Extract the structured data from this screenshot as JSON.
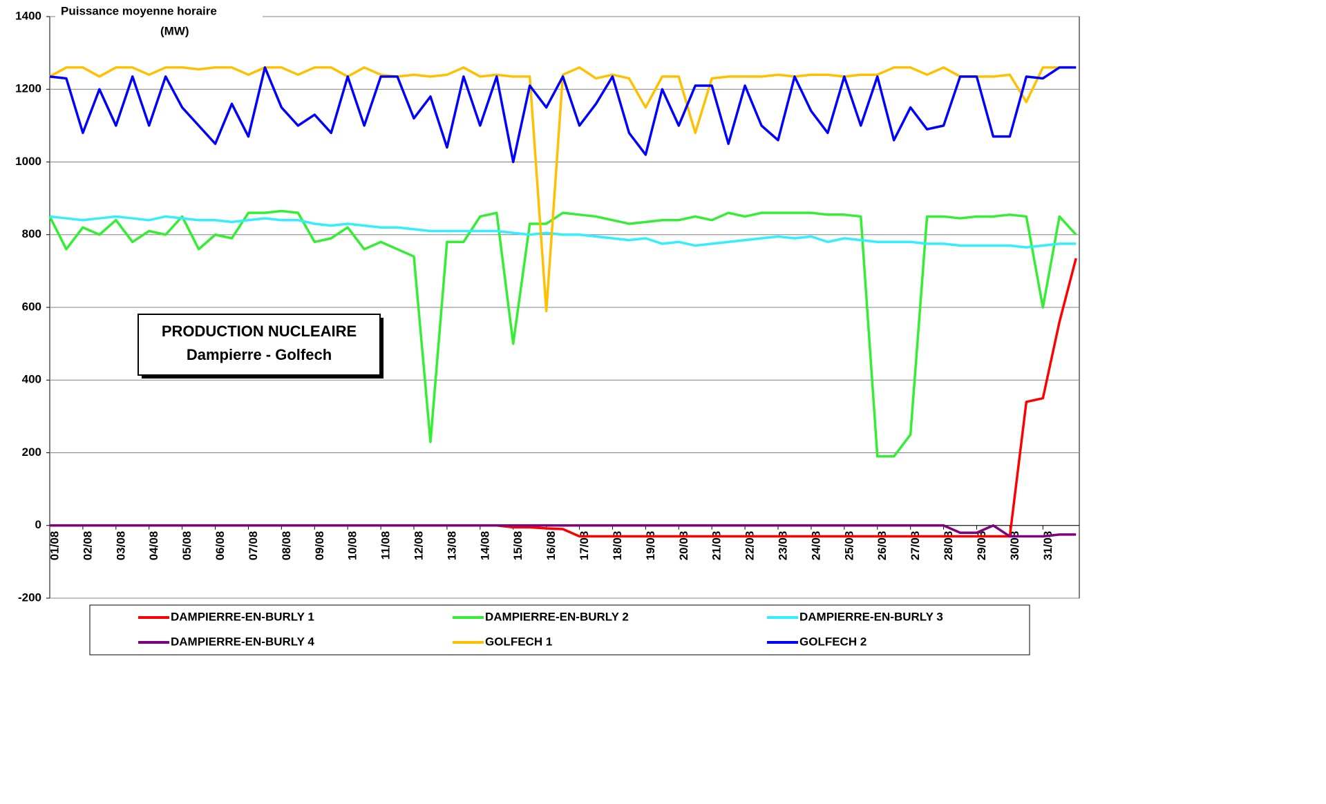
{
  "chart_data": {
    "type": "line",
    "ylabel": [
      "Puissance moyenne horaire",
      "(MW)"
    ],
    "annotation": [
      "PRODUCTION NUCLEAIRE",
      "Dampierre - Golfech"
    ],
    "x": [
      0,
      0.5,
      1,
      1.5,
      2,
      2.5,
      3,
      3.5,
      4,
      4.5,
      5,
      5.5,
      6,
      6.5,
      7,
      7.5,
      8,
      8.5,
      9,
      9.5,
      10,
      10.5,
      11,
      11.5,
      12,
      12.5,
      13,
      13.5,
      14,
      14.5,
      15,
      15.5,
      16,
      16.5,
      17,
      17.5,
      18,
      18.5,
      19,
      19.5,
      20,
      20.5,
      21,
      21.5,
      22,
      22.5,
      23,
      23.5,
      24,
      24.5,
      25,
      25.5,
      26,
      26.5,
      27,
      27.5,
      28,
      28.5,
      29,
      29.5,
      30,
      30.5,
      31
    ],
    "xlim": [
      0,
      31.1
    ],
    "xticks": [
      {
        "value": 0,
        "label": "01/08"
      },
      {
        "value": 1,
        "label": "02/08"
      },
      {
        "value": 2,
        "label": "03/08"
      },
      {
        "value": 3,
        "label": "04/08"
      },
      {
        "value": 4,
        "label": "05/08"
      },
      {
        "value": 5,
        "label": "06/08"
      },
      {
        "value": 6,
        "label": "07/08"
      },
      {
        "value": 7,
        "label": "08/08"
      },
      {
        "value": 8,
        "label": "09/08"
      },
      {
        "value": 9,
        "label": "10/08"
      },
      {
        "value": 10,
        "label": "11/08"
      },
      {
        "value": 11,
        "label": "12/08"
      },
      {
        "value": 12,
        "label": "13/08"
      },
      {
        "value": 13,
        "label": "14/08"
      },
      {
        "value": 14,
        "label": "15/08"
      },
      {
        "value": 15,
        "label": "16/08"
      },
      {
        "value": 16,
        "label": "17/08"
      },
      {
        "value": 17,
        "label": "18/08"
      },
      {
        "value": 18,
        "label": "19/08"
      },
      {
        "value": 19,
        "label": "20/08"
      },
      {
        "value": 20,
        "label": "21/08"
      },
      {
        "value": 21,
        "label": "22/08"
      },
      {
        "value": 22,
        "label": "23/08"
      },
      {
        "value": 23,
        "label": "24/08"
      },
      {
        "value": 24,
        "label": "25/08"
      },
      {
        "value": 25,
        "label": "26/08"
      },
      {
        "value": 26,
        "label": "27/08"
      },
      {
        "value": 27,
        "label": "28/08"
      },
      {
        "value": 28,
        "label": "29/08"
      },
      {
        "value": 29,
        "label": "30/08"
      },
      {
        "value": 30,
        "label": "31/08"
      }
    ],
    "ylim": [
      -200,
      1400
    ],
    "yticks": [
      -200,
      0,
      200,
      400,
      600,
      800,
      1000,
      1200,
      1400
    ],
    "grid": true,
    "series": [
      {
        "name": "DAMPIERRE-EN-BURLY 1",
        "color": "#ff0000",
        "values": [
          0,
          0,
          0,
          0,
          0,
          0,
          0,
          0,
          0,
          0,
          0,
          0,
          0,
          0,
          0,
          0,
          0,
          0,
          0,
          0,
          0,
          0,
          0,
          0,
          0,
          0,
          0,
          0,
          -5,
          -5,
          -8,
          -10,
          -30,
          -30,
          -30,
          -30,
          -30,
          -30,
          -30,
          -30,
          -30,
          -30,
          -30,
          -30,
          -30,
          -30,
          -30,
          -30,
          -30,
          -30,
          -30,
          -30,
          -30,
          -30,
          -30,
          -30,
          -30,
          -30,
          -30,
          340,
          350,
          560,
          735
        ]
      },
      {
        "name": "DAMPIERRE-EN-BURLY 2",
        "color": "#33ee33",
        "values": [
          850,
          760,
          820,
          800,
          840,
          780,
          810,
          800,
          850,
          760,
          800,
          790,
          860,
          860,
          865,
          860,
          780,
          790,
          820,
          760,
          780,
          760,
          740,
          230,
          780,
          780,
          850,
          860,
          500,
          830,
          830,
          860,
          855,
          850,
          840,
          830,
          835,
          840,
          840,
          850,
          840,
          860,
          850,
          860,
          860,
          860,
          860,
          855,
          855,
          850,
          190,
          190,
          250,
          850,
          850,
          845,
          850,
          850,
          855,
          850,
          600,
          850,
          800
        ]
      },
      {
        "name": "DAMPIERRE-EN-BURLY 3",
        "color": "#33eeff",
        "values": [
          850,
          845,
          840,
          845,
          850,
          845,
          840,
          850,
          845,
          840,
          840,
          835,
          840,
          845,
          840,
          840,
          830,
          825,
          830,
          825,
          820,
          820,
          815,
          810,
          810,
          810,
          810,
          810,
          805,
          800,
          805,
          800,
          800,
          795,
          790,
          785,
          790,
          775,
          780,
          770,
          775,
          780,
          785,
          790,
          795,
          790,
          795,
          780,
          790,
          785,
          780,
          780,
          780,
          775,
          775,
          770,
          770,
          770,
          770,
          765,
          770,
          775,
          775
        ]
      },
      {
        "name": "DAMPIERRE-EN-BURLY 4",
        "color": "#800080",
        "values": [
          0,
          0,
          0,
          0,
          0,
          0,
          0,
          0,
          0,
          0,
          0,
          0,
          0,
          0,
          0,
          0,
          0,
          0,
          0,
          0,
          0,
          0,
          0,
          0,
          0,
          0,
          0,
          0,
          0,
          0,
          0,
          0,
          0,
          0,
          0,
          0,
          0,
          0,
          0,
          0,
          0,
          0,
          0,
          0,
          0,
          0,
          0,
          0,
          0,
          0,
          0,
          0,
          0,
          0,
          0,
          -20,
          -20,
          0,
          -30,
          -30,
          -30,
          -25,
          -25
        ]
      },
      {
        "name": "GOLFECH 1",
        "color": "#ffc000",
        "values": [
          1235,
          1260,
          1260,
          1235,
          1260,
          1260,
          1240,
          1260,
          1260,
          1255,
          1260,
          1260,
          1240,
          1260,
          1260,
          1240,
          1260,
          1260,
          1235,
          1260,
          1240,
          1235,
          1240,
          1235,
          1240,
          1260,
          1235,
          1240,
          1235,
          1235,
          590,
          1240,
          1260,
          1230,
          1240,
          1230,
          1150,
          1235,
          1235,
          1080,
          1230,
          1235,
          1235,
          1235,
          1240,
          1235,
          1240,
          1240,
          1235,
          1240,
          1240,
          1260,
          1260,
          1240,
          1260,
          1235,
          1235,
          1235,
          1240,
          1165,
          1260,
          1260,
          1260
        ]
      },
      {
        "name": "GOLFECH 2",
        "color": "#0000ff",
        "values": [
          1235,
          1230,
          1080,
          1200,
          1100,
          1235,
          1100,
          1235,
          1150,
          1100,
          1050,
          1160,
          1070,
          1260,
          1150,
          1100,
          1130,
          1080,
          1235,
          1100,
          1235,
          1235,
          1120,
          1180,
          1040,
          1235,
          1100,
          1235,
          1000,
          1210,
          1150,
          1235,
          1100,
          1160,
          1235,
          1080,
          1020,
          1200,
          1100,
          1210,
          1210,
          1050,
          1210,
          1100,
          1060,
          1235,
          1140,
          1080,
          1235,
          1100,
          1235,
          1060,
          1150,
          1090,
          1100,
          1235,
          1235,
          1070,
          1070,
          1235,
          1230,
          1260,
          1260
        ]
      }
    ]
  }
}
